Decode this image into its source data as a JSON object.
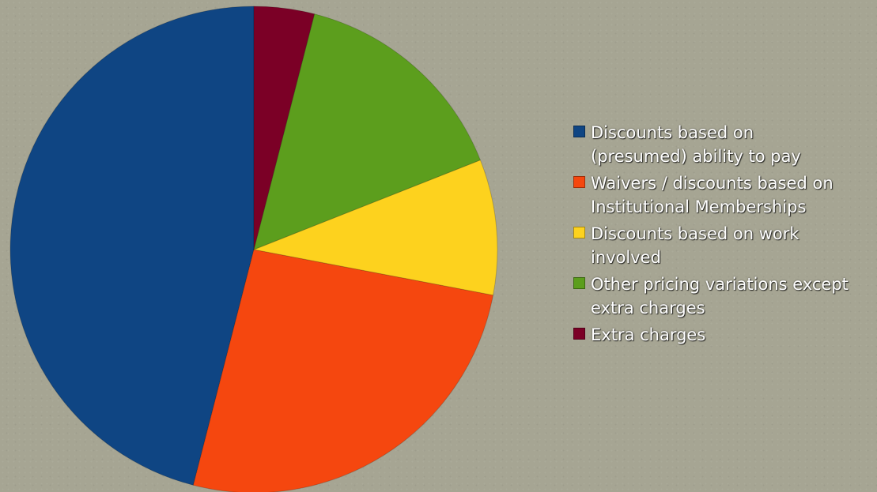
{
  "chart_data": {
    "type": "pie",
    "title": "",
    "categories": [
      "Discounts based on\n(presumed) ability to pay",
      "Waivers / discounts based on\nInstitutional Memberships",
      "Discounts based on work\ninvolved",
      "Other pricing variations except\nextra charges",
      "Extra charges"
    ],
    "values": [
      46,
      26,
      9,
      15,
      4
    ],
    "colors": [
      "#0f4583",
      "#f5470f",
      "#fdd21e",
      "#5c9e1d",
      "#7b0026"
    ],
    "start_angle_deg": 0,
    "direction": "counterclockwise",
    "legend_position": "right"
  }
}
